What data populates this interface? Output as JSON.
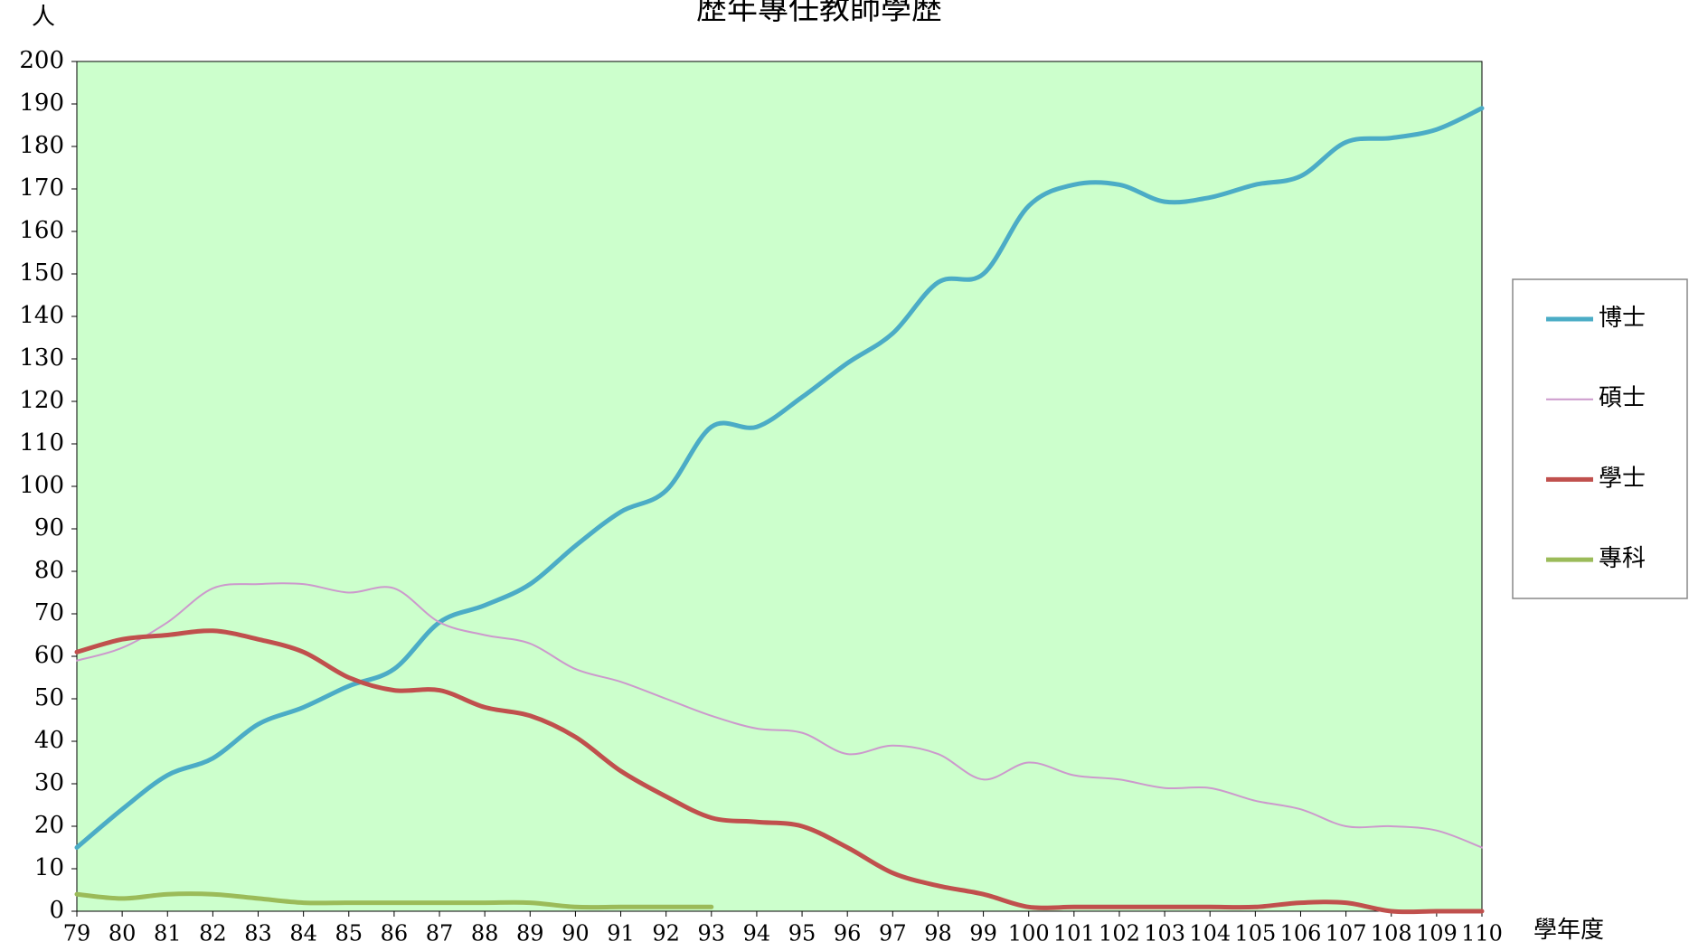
{
  "chart_data": {
    "type": "line",
    "title": "歷年專任教師學歷",
    "y_label": "人",
    "x_label": "學年度",
    "categories": [
      "79",
      "80",
      "81",
      "82",
      "83",
      "84",
      "85",
      "86",
      "87",
      "88",
      "89",
      "90",
      "91",
      "92",
      "93",
      "94",
      "95",
      "96",
      "97",
      "98",
      "99",
      "100",
      "101",
      "102",
      "103",
      "104",
      "105",
      "106",
      "107",
      "108",
      "109",
      "110"
    ],
    "series": [
      {
        "name": "博士",
        "color": "#4bacc6",
        "values": [
          15,
          24,
          32,
          36,
          44,
          48,
          53,
          57,
          68,
          72,
          77,
          86,
          94,
          99,
          114,
          114,
          121,
          129,
          136,
          148,
          150,
          166,
          171,
          171,
          167,
          168,
          171,
          173,
          181,
          182,
          184,
          189
        ]
      },
      {
        "name": "碩士",
        "color": "#cc99cc",
        "values": [
          59,
          62,
          68,
          76,
          77,
          77,
          75,
          76,
          68,
          65,
          63,
          57,
          54,
          50,
          46,
          43,
          42,
          37,
          39,
          37,
          31,
          35,
          32,
          31,
          29,
          29,
          26,
          24,
          20,
          20,
          19,
          15
        ]
      },
      {
        "name": "學士",
        "color": "#c0504d",
        "values": [
          61,
          64,
          65,
          66,
          64,
          61,
          55,
          52,
          52,
          48,
          46,
          41,
          33,
          27,
          22,
          21,
          20,
          15,
          9,
          6,
          4,
          1,
          1,
          1,
          1,
          1,
          1,
          2,
          2,
          0,
          0,
          0
        ]
      },
      {
        "name": "專科",
        "color": "#9bbb59",
        "values": [
          4,
          3,
          4,
          4,
          3,
          2,
          2,
          2,
          2,
          2,
          2,
          1,
          1,
          1,
          1,
          null,
          null,
          null,
          null,
          null,
          null,
          null,
          null,
          null,
          null,
          null,
          null,
          null,
          null,
          null,
          null,
          null
        ]
      }
    ],
    "ylim": [
      0,
      200
    ],
    "yticks": [
      0,
      10,
      20,
      30,
      40,
      50,
      60,
      70,
      80,
      90,
      100,
      110,
      120,
      130,
      140,
      150,
      160,
      170,
      180,
      190,
      200
    ],
    "background": "#ccffcc",
    "legend": "right"
  }
}
